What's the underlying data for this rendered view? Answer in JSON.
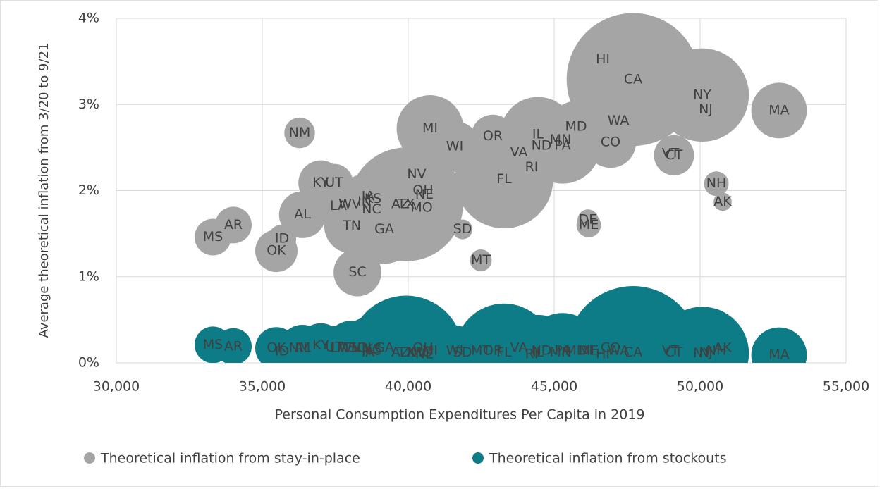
{
  "chart_data": {
    "type": "bubble",
    "xlabel": "Personal Consumption Expenditures Per Capita in 2019",
    "ylabel": "Average theoretical inflation from 3/20 to 9/21",
    "xlim": [
      30000,
      55000
    ],
    "xticks": [
      {
        "value": 30000,
        "label": "30,000"
      },
      {
        "value": 35000,
        "label": "35,000"
      },
      {
        "value": 40000,
        "label": "40,000"
      },
      {
        "value": 45000,
        "label": "45,000"
      },
      {
        "value": 50000,
        "label": "50,000"
      },
      {
        "value": 55000,
        "label": "55,000"
      }
    ],
    "ylim": [
      0,
      4
    ],
    "yticks": [
      {
        "value": 0,
        "label": "0%"
      },
      {
        "value": 1,
        "label": "1%"
      },
      {
        "value": 2,
        "label": "2%"
      },
      {
        "value": 3,
        "label": "3%"
      },
      {
        "value": 4,
        "label": "4%"
      }
    ],
    "grid": true,
    "legend": "bottom",
    "series": [
      {
        "name": "Theoretical inflation from stay-in-place",
        "color": "#a5a5a5",
        "labels": [
          "HI",
          "CA",
          "NY",
          "NJ",
          "MA",
          "WA",
          "MD",
          "CO",
          "IL",
          "MN",
          "PA",
          "ND",
          "VA",
          "RI",
          "FL",
          "OR",
          "MI",
          "WI",
          "NV",
          "OH",
          "NE",
          "TX",
          "AZ",
          "MO",
          "NC",
          "IN",
          "IA",
          "KS",
          "WV",
          "LA",
          "TN",
          "GA",
          "SD",
          "MT",
          "SC",
          "KY",
          "UT",
          "AL",
          "NM",
          "AR",
          "MS",
          "ID",
          "OK",
          "VT",
          "CT",
          "NH",
          "AK",
          "DE",
          "ME"
        ],
        "x": [
          46667,
          47705,
          50072,
          50193,
          52705,
          47198,
          45749,
          46932,
          44444,
          45217,
          45290,
          44565,
          43792,
          44227,
          43285,
          42899,
          40749,
          41594,
          40290,
          40507,
          40556,
          39928,
          39734,
          40459,
          38744,
          38502,
          38623,
          38792,
          37995,
          37609,
          38068,
          39179,
          41860,
          42488,
          38261,
          37005,
          37464,
          36377,
          36280,
          34010,
          33309,
          35676,
          35483,
          48986,
          49106,
          50556,
          50773,
          46159,
          46184
        ],
        "values": [
          3.52,
          3.29,
          3.11,
          2.94,
          2.93,
          2.81,
          2.74,
          2.56,
          2.65,
          2.59,
          2.52,
          2.52,
          2.44,
          2.27,
          2.13,
          2.63,
          2.72,
          2.51,
          2.19,
          2.0,
          1.95,
          1.84,
          1.84,
          1.8,
          1.78,
          1.87,
          1.93,
          1.9,
          1.84,
          1.82,
          1.59,
          1.55,
          1.55,
          1.19,
          1.05,
          2.09,
          2.09,
          1.72,
          2.67,
          1.6,
          1.46,
          1.44,
          1.3,
          2.43,
          2.41,
          2.08,
          1.87,
          1.66,
          1.6
        ],
        "sizes": [
          1.4,
          39.5,
          19.5,
          8.9,
          6.9,
          7.6,
          6.0,
          5.8,
          12.7,
          5.6,
          12.8,
          0.76,
          8.5,
          1.06,
          21.5,
          4.2,
          10.0,
          5.8,
          3.1,
          11.7,
          1.9,
          29,
          7.3,
          6.1,
          10.5,
          6.7,
          3.2,
          2.9,
          1.8,
          4.6,
          6.8,
          10.6,
          0.88,
          1.07,
          5.1,
          4.5,
          3.2,
          4.9,
          2.1,
          3.0,
          3.0,
          1.8,
          4.0,
          0.62,
          3.6,
          1.36,
          0.73,
          0.97,
          1.34
        ]
      },
      {
        "name": "Theoretical inflation from stockouts",
        "color": "#0e7c86",
        "labels": [
          "HI",
          "CA",
          "NY",
          "NJ",
          "MA",
          "WA",
          "MD",
          "CO",
          "IL",
          "MN",
          "PA",
          "ND",
          "VA",
          "RI",
          "FL",
          "OR",
          "MI",
          "WI",
          "NV",
          "OH",
          "NE",
          "TX",
          "AZ",
          "MO",
          "NC",
          "IN",
          "IA",
          "KS",
          "WV",
          "LA",
          "TN",
          "GA",
          "SD",
          "MT",
          "SC",
          "KY",
          "UT",
          "AL",
          "NM",
          "AR",
          "MS",
          "ID",
          "OK",
          "VT",
          "CT",
          "NH",
          "AK",
          "DE",
          "ME"
        ],
        "x": [
          46667,
          47705,
          50072,
          50193,
          52705,
          47198,
          45749,
          46932,
          44444,
          45217,
          45290,
          44565,
          43792,
          44227,
          43285,
          42899,
          40749,
          41594,
          40290,
          40507,
          40556,
          39928,
          39734,
          40459,
          38744,
          38502,
          38623,
          38792,
          37995,
          37609,
          38068,
          39179,
          41860,
          42488,
          38261,
          37005,
          37464,
          36377,
          36280,
          34010,
          33309,
          35676,
          35483,
          48986,
          49106,
          50556,
          50773,
          46159,
          46184
        ],
        "values": [
          0.1,
          0.12,
          0.11,
          0.12,
          0.09,
          0.14,
          0.14,
          0.17,
          0.12,
          0.12,
          0.14,
          0.14,
          0.17,
          0.1,
          0.12,
          0.14,
          0.14,
          0.14,
          0.12,
          0.17,
          0.1,
          0.12,
          0.12,
          0.12,
          0.14,
          0.17,
          0.12,
          0.16,
          0.17,
          0.17,
          0.17,
          0.17,
          0.12,
          0.14,
          0.17,
          0.2,
          0.18,
          0.17,
          0.17,
          0.19,
          0.21,
          0.13,
          0.17,
          0.14,
          0.12,
          0.14,
          0.17,
          0.14,
          0.14
        ],
        "sizes": [
          1.4,
          39.5,
          19.5,
          8.9,
          6.9,
          7.6,
          6.0,
          5.8,
          12.7,
          5.6,
          12.8,
          0.76,
          8.5,
          1.06,
          21.5,
          4.2,
          10.0,
          5.8,
          3.1,
          11.7,
          1.9,
          29,
          7.3,
          6.1,
          10.5,
          6.7,
          3.2,
          2.9,
          1.8,
          4.6,
          6.8,
          10.6,
          0.88,
          1.07,
          5.1,
          4.5,
          3.2,
          4.9,
          2.1,
          3.0,
          3.0,
          1.8,
          4.0,
          0.62,
          3.6,
          1.36,
          0.73,
          0.97,
          1.34
        ]
      }
    ]
  }
}
